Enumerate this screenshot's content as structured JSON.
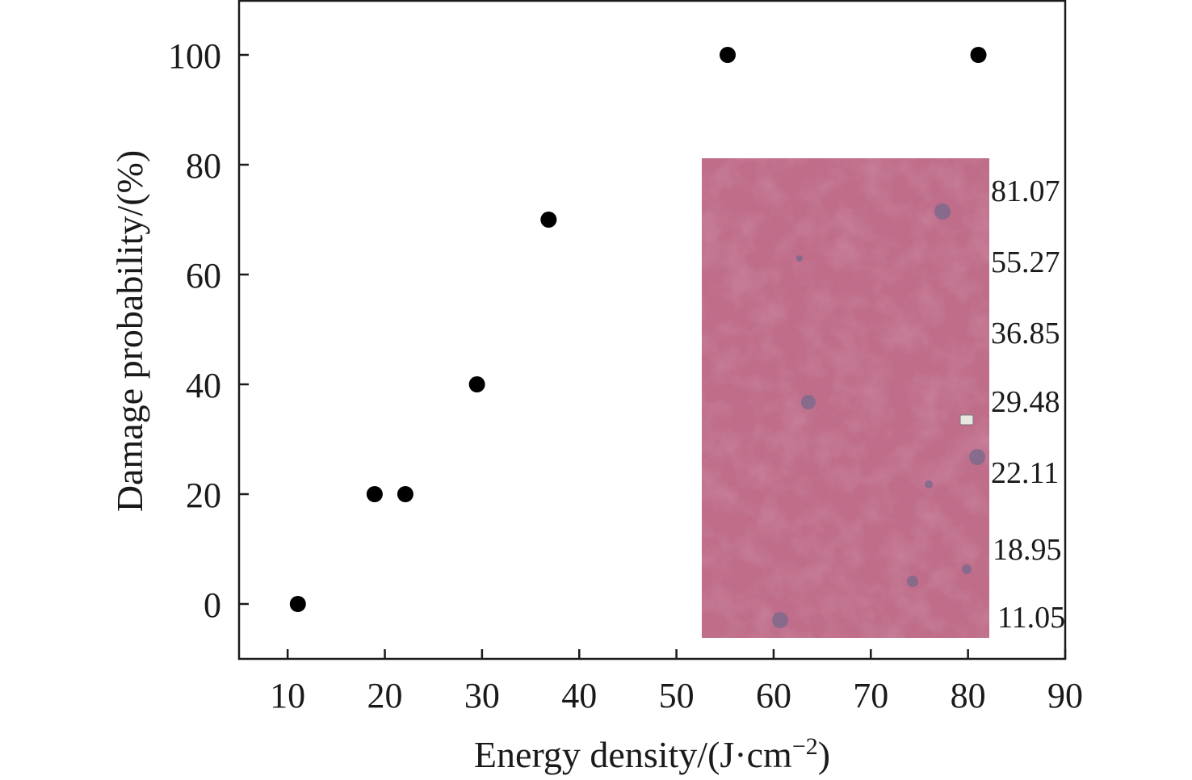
{
  "chart_data": {
    "type": "scatter",
    "title": "",
    "xlabel": "Energy density/(J·cm",
    "xlabel_superscript": "−2",
    "xlabel_close": ")",
    "ylabel": "Damage probability/(%)",
    "xlim": [
      5,
      90
    ],
    "ylim": [
      -10,
      110
    ],
    "x_ticks": [
      10,
      20,
      30,
      40,
      50,
      60,
      70,
      80,
      90
    ],
    "y_ticks": [
      0,
      20,
      40,
      60,
      80,
      100
    ],
    "grid": false,
    "legend": "none",
    "marker_color": "#000000",
    "series": [
      {
        "points": [
          {
            "x": 11.05,
            "y": 0
          },
          {
            "x": 18.95,
            "y": 20
          },
          {
            "x": 22.11,
            "y": 20
          },
          {
            "x": 29.48,
            "y": 40
          },
          {
            "x": 36.85,
            "y": 70
          },
          {
            "x": 55.27,
            "y": 100
          },
          {
            "x": 81.07,
            "y": 100
          }
        ]
      }
    ],
    "inset": {
      "content": "surface damage micrograph",
      "base_color": "#c26a86",
      "labels": [
        "81.07",
        "55.27",
        "36.85",
        "29.48",
        "22.11",
        "18.95",
        "11.05"
      ]
    }
  }
}
